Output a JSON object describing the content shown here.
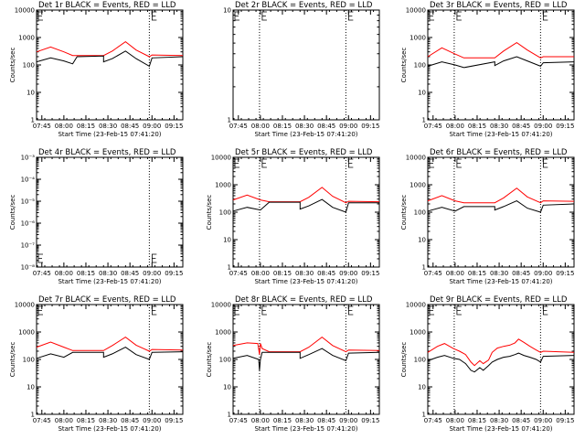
{
  "chart_data": [
    {
      "type": "line",
      "title": "Det 1r BLACK = Events, RED = LLD",
      "xlabel": "Start Time (23-Feb-15 07:41:20)",
      "ylabel": "Counts/sec",
      "yscale": "log",
      "ylim": [
        1,
        10000
      ],
      "ytick_labels": [
        "1",
        "10",
        "100",
        "1000",
        "10000"
      ],
      "xticks": [
        7.75,
        8.0,
        8.25,
        8.5,
        8.75,
        9.0,
        9.25
      ],
      "xtick_labels": [
        "07:45",
        "08:00",
        "08:15",
        "08:30",
        "08:45",
        "09:00",
        "09:15"
      ],
      "xlim": [
        7.69,
        9.35
      ],
      "vlines": [
        8.97
      ],
      "e_marker": true,
      "series": [
        {
          "color": "#ff0000",
          "x": [
            7.69,
            7.85,
            8.0,
            8.1,
            8.15,
            8.45,
            8.55,
            8.7,
            8.82,
            8.97,
            9.0,
            9.35
          ],
          "y": [
            300,
            450,
            300,
            220,
            220,
            220,
            320,
            700,
            350,
            200,
            230,
            220
          ]
        },
        {
          "color": "#000000",
          "x": [
            7.69,
            7.85,
            8.0,
            8.1,
            8.15,
            8.45,
            8.45,
            8.55,
            8.7,
            8.82,
            8.97,
            9.0,
            9.35
          ],
          "y": [
            130,
            180,
            140,
            110,
            200,
            210,
            130,
            170,
            320,
            170,
            90,
            180,
            200
          ]
        }
      ]
    },
    {
      "type": "line",
      "title": "Det 2r BLACK = Events, RED = LLD",
      "xlabel": "Start Time (23-Feb-15 07:41:20)",
      "ylabel": "",
      "yscale": "log",
      "ylim": [
        1,
        10
      ],
      "ytick_labels": [
        "1",
        "10"
      ],
      "xticks": [
        7.75,
        8.0,
        8.25,
        8.5,
        8.75,
        9.0,
        9.25
      ],
      "xtick_labels": [
        "07:45",
        "08:00",
        "08:15",
        "08:30",
        "08:45",
        "09:00",
        "09:15"
      ],
      "xlim": [
        7.69,
        9.35
      ],
      "vlines": [
        7.99,
        8.97
      ],
      "e_marker": true,
      "series": []
    },
    {
      "type": "line",
      "title": "Det 3r BLACK = Events, RED = LLD",
      "xlabel": "Start Time (23-Feb-15 07:41:20)",
      "ylabel": "Counts/sec",
      "yscale": "log",
      "ylim": [
        1,
        10000
      ],
      "ytick_labels": [
        "1",
        "10",
        "100",
        "1000",
        "10000"
      ],
      "xticks": [
        7.75,
        8.0,
        8.25,
        8.5,
        8.75,
        9.0,
        9.25
      ],
      "xtick_labels": [
        "07:45",
        "08:00",
        "08:15",
        "08:30",
        "08:45",
        "09:00",
        "09:15"
      ],
      "xlim": [
        7.69,
        9.35
      ],
      "vlines": [
        7.99,
        8.97
      ],
      "e_marker": true,
      "series": [
        {
          "color": "#ff0000",
          "x": [
            7.69,
            7.85,
            8.0,
            8.1,
            8.45,
            8.55,
            8.7,
            8.82,
            8.97,
            9.0,
            9.35
          ],
          "y": [
            200,
            420,
            250,
            180,
            180,
            320,
            650,
            350,
            180,
            200,
            200
          ]
        },
        {
          "color": "#000000",
          "x": [
            7.69,
            7.85,
            8.0,
            8.1,
            8.45,
            8.45,
            8.55,
            8.7,
            8.82,
            8.97,
            9.0,
            9.35
          ],
          "y": [
            90,
            130,
            100,
            80,
            130,
            95,
            140,
            200,
            140,
            90,
            120,
            130
          ]
        }
      ]
    },
    {
      "type": "line",
      "title": "Det 4r BLACK = Events, RED = LLD",
      "xlabel": "Start Time (23-Feb-15 07:41:20)",
      "ylabel": "Counts/sec",
      "yscale": "log",
      "ylim": [
        1e-08,
        0.001
      ],
      "ytick_labels": [
        "10⁻⁸",
        "10⁻⁷",
        "10⁻⁶",
        "10⁻⁵",
        "10⁻⁴",
        "10⁻³"
      ],
      "xticks": [
        7.75,
        8.0,
        8.25,
        8.5,
        8.75,
        9.0,
        9.25
      ],
      "xtick_labels": [
        "07:45",
        "08:00",
        "08:15",
        "08:30",
        "08:45",
        "09:00",
        "09:15"
      ],
      "xlim": [
        7.69,
        9.35
      ],
      "vlines": [
        8.97
      ],
      "e_marker": true,
      "series": []
    },
    {
      "type": "line",
      "title": "Det 5r BLACK = Events, RED = LLD",
      "xlabel": "Start Time (23-Feb-15 07:41:20)",
      "ylabel": "Counts/sec",
      "yscale": "log",
      "ylim": [
        1,
        10000
      ],
      "ytick_labels": [
        "1",
        "10",
        "100",
        "1000",
        "10000"
      ],
      "xticks": [
        7.75,
        8.0,
        8.25,
        8.5,
        8.75,
        9.0,
        9.25
      ],
      "xtick_labels": [
        "07:45",
        "08:00",
        "08:15",
        "08:30",
        "08:45",
        "09:00",
        "09:15"
      ],
      "xlim": [
        7.69,
        9.35
      ],
      "vlines": [
        7.99,
        8.97
      ],
      "e_marker": true,
      "series": [
        {
          "color": "#ff0000",
          "x": [
            7.69,
            7.85,
            8.0,
            8.1,
            8.45,
            8.55,
            8.7,
            8.82,
            8.97,
            9.0,
            9.35
          ],
          "y": [
            280,
            420,
            280,
            240,
            240,
            350,
            800,
            380,
            220,
            250,
            240
          ]
        },
        {
          "color": "#000000",
          "x": [
            7.69,
            7.85,
            8.0,
            8.1,
            8.45,
            8.45,
            8.55,
            8.7,
            8.82,
            8.97,
            9.0,
            9.35
          ],
          "y": [
            110,
            150,
            120,
            230,
            230,
            130,
            170,
            290,
            150,
            100,
            220,
            220
          ]
        }
      ]
    },
    {
      "type": "line",
      "title": "Det 6r BLACK = Events, RED = LLD",
      "xlabel": "Start Time (23-Feb-15 07:41:20)",
      "ylabel": "Counts/sec",
      "yscale": "log",
      "ylim": [
        1,
        10000
      ],
      "ytick_labels": [
        "1",
        "10",
        "100",
        "1000",
        "10000"
      ],
      "xticks": [
        7.75,
        8.0,
        8.25,
        8.5,
        8.75,
        9.0,
        9.25
      ],
      "xtick_labels": [
        "07:45",
        "08:00",
        "08:15",
        "08:30",
        "08:45",
        "09:00",
        "09:15"
      ],
      "xlim": [
        7.69,
        9.35
      ],
      "vlines": [
        7.99,
        8.97
      ],
      "e_marker": true,
      "series": [
        {
          "color": "#ff0000",
          "x": [
            7.69,
            7.85,
            8.0,
            8.1,
            8.45,
            8.55,
            8.7,
            8.82,
            8.97,
            9.0,
            9.35
          ],
          "y": [
            260,
            400,
            260,
            220,
            220,
            330,
            750,
            360,
            220,
            260,
            250
          ]
        },
        {
          "color": "#000000",
          "x": [
            7.69,
            7.85,
            8.0,
            8.1,
            8.45,
            8.45,
            8.55,
            8.7,
            8.82,
            8.97,
            9.0,
            9.35
          ],
          "y": [
            110,
            150,
            110,
            160,
            160,
            120,
            160,
            260,
            140,
            100,
            180,
            200
          ]
        }
      ]
    },
    {
      "type": "line",
      "title": "Det 7r BLACK = Events, RED = LLD",
      "xlabel": "Start Time (23-Feb-15 07:41:20)",
      "ylabel": "Counts/sec",
      "yscale": "log",
      "ylim": [
        1,
        10000
      ],
      "ytick_labels": [
        "1",
        "10",
        "100",
        "1000",
        "10000"
      ],
      "xticks": [
        7.75,
        8.0,
        8.25,
        8.5,
        8.75,
        9.0,
        9.25
      ],
      "xtick_labels": [
        "07:45",
        "08:00",
        "08:15",
        "08:30",
        "08:45",
        "09:00",
        "09:15"
      ],
      "xlim": [
        7.69,
        9.35
      ],
      "vlines": [
        8.97
      ],
      "e_marker": true,
      "series": [
        {
          "color": "#ff0000",
          "x": [
            7.69,
            7.85,
            8.0,
            8.1,
            8.45,
            8.55,
            8.7,
            8.82,
            8.97,
            9.0,
            9.35
          ],
          "y": [
            280,
            430,
            280,
            210,
            210,
            320,
            650,
            330,
            200,
            230,
            220
          ]
        },
        {
          "color": "#000000",
          "x": [
            7.69,
            7.85,
            8.0,
            8.1,
            8.45,
            8.45,
            8.55,
            8.7,
            8.82,
            8.97,
            9.0,
            9.35
          ],
          "y": [
            110,
            160,
            120,
            180,
            180,
            120,
            160,
            280,
            150,
            100,
            180,
            190
          ]
        }
      ]
    },
    {
      "type": "line",
      "title": "Det 8r BLACK = Events, RED = LLD",
      "xlabel": "Start Time (23-Feb-15 07:41:20)",
      "ylabel": "Counts/sec",
      "yscale": "log",
      "ylim": [
        1,
        10000
      ],
      "ytick_labels": [
        "1",
        "10",
        "100",
        "1000",
        "10000"
      ],
      "xticks": [
        7.75,
        8.0,
        8.25,
        8.5,
        8.75,
        9.0,
        9.25
      ],
      "xtick_labels": [
        "07:45",
        "08:00",
        "08:15",
        "08:30",
        "08:45",
        "09:00",
        "09:15"
      ],
      "xlim": [
        7.69,
        9.35
      ],
      "vlines": [
        7.99,
        8.97
      ],
      "e_marker": true,
      "series": [
        {
          "color": "#ff0000",
          "x": [
            7.69,
            7.85,
            7.97,
            7.99,
            8.0,
            8.02,
            8.1,
            8.45,
            8.55,
            8.7,
            8.82,
            8.97,
            9.0,
            9.35
          ],
          "y": [
            320,
            400,
            380,
            150,
            380,
            250,
            190,
            190,
            280,
            650,
            320,
            190,
            220,
            210
          ]
        },
        {
          "color": "#000000",
          "x": [
            7.69,
            7.85,
            7.98,
            7.99,
            8.0,
            8.02,
            8.1,
            8.45,
            8.45,
            8.55,
            8.7,
            8.82,
            8.97,
            9.0,
            9.35
          ],
          "y": [
            110,
            140,
            100,
            40,
            100,
            180,
            180,
            180,
            110,
            150,
            250,
            140,
            90,
            170,
            180
          ]
        }
      ]
    },
    {
      "type": "line",
      "title": "Det 9r BLACK = Events, RED = LLD",
      "xlabel": "Start Time (23-Feb-15 07:41:20)",
      "ylabel": "Counts/sec",
      "yscale": "log",
      "ylim": [
        1,
        10000
      ],
      "ytick_labels": [
        "1",
        "10",
        "100",
        "1000",
        "10000"
      ],
      "xticks": [
        7.75,
        8.0,
        8.25,
        8.5,
        8.75,
        9.0,
        9.25
      ],
      "xtick_labels": [
        "07:45",
        "08:00",
        "08:15",
        "08:30",
        "08:45",
        "09:00",
        "09:15"
      ],
      "xlim": [
        7.69,
        9.35
      ],
      "vlines": [
        7.99,
        8.97
      ],
      "e_marker": true,
      "series": [
        {
          "color": "#ff0000",
          "x": [
            7.69,
            7.8,
            7.88,
            7.98,
            8.05,
            8.12,
            8.18,
            8.22,
            8.28,
            8.32,
            8.38,
            8.42,
            8.48,
            8.55,
            8.62,
            8.68,
            8.72,
            8.78,
            8.85,
            8.92,
            8.97,
            9.0,
            9.35
          ],
          "y": [
            180,
            300,
            380,
            250,
            200,
            150,
            80,
            60,
            90,
            70,
            95,
            180,
            260,
            300,
            330,
            400,
            550,
            420,
            300,
            220,
            180,
            200,
            180
          ]
        },
        {
          "color": "#000000",
          "x": [
            7.69,
            7.8,
            7.88,
            7.98,
            8.05,
            8.12,
            8.18,
            8.22,
            8.28,
            8.32,
            8.38,
            8.42,
            8.48,
            8.55,
            8.62,
            8.68,
            8.72,
            8.78,
            8.85,
            8.92,
            8.97,
            9.0,
            9.35
          ],
          "y": [
            90,
            120,
            140,
            110,
            100,
            70,
            40,
            35,
            50,
            40,
            60,
            80,
            100,
            120,
            130,
            150,
            170,
            140,
            120,
            100,
            80,
            130,
            140
          ]
        }
      ]
    }
  ]
}
